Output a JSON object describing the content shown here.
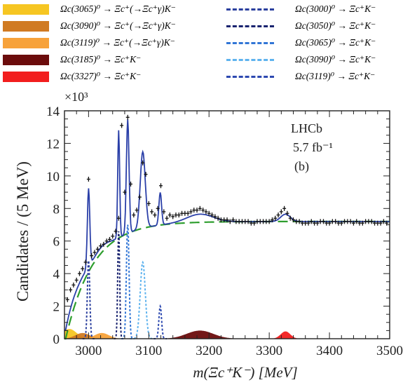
{
  "legend": {
    "left": [
      {
        "label": "Ωc(3065)⁰ → Ξc⁺(→Ξc⁺γ)K⁻",
        "color": "#f6c622"
      },
      {
        "label": "Ωc(3090)⁰ → Ξc⁺(→Ξc⁺γ)K⁻",
        "color": "#d07a22"
      },
      {
        "label": "Ωc(3119)⁰ → Ξc⁺(→Ξc⁺γ)K⁻",
        "color": "#f7a23a"
      },
      {
        "label": "Ωc(3185)⁰ → Ξc⁺K⁻",
        "color": "#6b0c0c"
      },
      {
        "label": "Ωc(3327)⁰ → Ξc⁺K⁻",
        "color": "#f21e1e"
      }
    ],
    "right": [
      {
        "label": "Ωc(3000)⁰ → Ξc⁺K⁻",
        "color": "#2a3f9e"
      },
      {
        "label": "Ωc(3050)⁰ → Ξc⁺K⁻",
        "color": "#1a2470"
      },
      {
        "label": "Ωc(3065)⁰ → Ξc⁺K⁻",
        "color": "#3276d6"
      },
      {
        "label": "Ωc(3090)⁰ → Ξc⁺K⁻",
        "color": "#5fb3ee"
      },
      {
        "label": "Ωc(3119)⁰ → Ξc⁺K⁻",
        "color": "#2d49b0"
      }
    ]
  },
  "annotations": {
    "experiment": "LHCb",
    "luminosity": "5.7 fb⁻¹",
    "panel": "(b)",
    "multiplier": "×10³"
  },
  "chart_data": {
    "type": "line",
    "xlabel": "m(Ξc⁺K⁻) [MeV]",
    "ylabel": "Candidates / (5 MeV)",
    "y_multiplier": "×10³",
    "xlim": [
      2960,
      3500
    ],
    "ylim": [
      0,
      14
    ],
    "xticks": [
      "3000",
      "3100",
      "3200",
      "3300",
      "3400",
      "3500"
    ],
    "yticks": [
      "0",
      "2",
      "4",
      "6",
      "8",
      "10",
      "12",
      "14"
    ],
    "background": {
      "name": "Background",
      "color": "#2e9e2e",
      "threshold": 2962,
      "asymptote": 7.2,
      "scale": 45
    },
    "total_fit_color": "#2a3fa8",
    "data_points": [
      [
        2965,
        2.4
      ],
      [
        2970,
        3.0
      ],
      [
        2975,
        3.3
      ],
      [
        2980,
        3.6
      ],
      [
        2985,
        4.0
      ],
      [
        2990,
        4.3
      ],
      [
        2995,
        4.7
      ],
      [
        3000,
        9.8
      ],
      [
        3005,
        5.1
      ],
      [
        3010,
        5.3
      ],
      [
        3015,
        5.5
      ],
      [
        3020,
        5.7
      ],
      [
        3025,
        5.8
      ],
      [
        3030,
        6.0
      ],
      [
        3035,
        6.1
      ],
      [
        3040,
        6.3
      ],
      [
        3045,
        6.6
      ],
      [
        3050,
        7.4
      ],
      [
        3055,
        13.1
      ],
      [
        3060,
        9.0
      ],
      [
        3065,
        13.6
      ],
      [
        3070,
        9.5
      ],
      [
        3075,
        7.6
      ],
      [
        3080,
        7.9
      ],
      [
        3085,
        8.7
      ],
      [
        3090,
        10.8
      ],
      [
        3095,
        10.1
      ],
      [
        3100,
        8.3
      ],
      [
        3105,
        7.8
      ],
      [
        3110,
        7.6
      ],
      [
        3115,
        8.0
      ],
      [
        3120,
        9.4
      ],
      [
        3125,
        7.8
      ],
      [
        3130,
        7.4
      ],
      [
        3135,
        7.6
      ],
      [
        3140,
        7.5
      ],
      [
        3145,
        7.6
      ],
      [
        3150,
        7.6
      ],
      [
        3155,
        7.7
      ],
      [
        3160,
        7.7
      ],
      [
        3165,
        7.7
      ],
      [
        3170,
        7.8
      ],
      [
        3175,
        7.9
      ],
      [
        3180,
        7.9
      ],
      [
        3185,
        8.0
      ],
      [
        3190,
        7.9
      ],
      [
        3195,
        7.8
      ],
      [
        3200,
        7.7
      ],
      [
        3205,
        7.6
      ],
      [
        3210,
        7.5
      ],
      [
        3215,
        7.4
      ],
      [
        3220,
        7.3
      ],
      [
        3225,
        7.3
      ],
      [
        3230,
        7.3
      ],
      [
        3235,
        7.2
      ],
      [
        3240,
        7.3
      ],
      [
        3245,
        7.2
      ],
      [
        3250,
        7.2
      ],
      [
        3255,
        7.2
      ],
      [
        3260,
        7.2
      ],
      [
        3265,
        7.2
      ],
      [
        3270,
        7.1
      ],
      [
        3275,
        7.1
      ],
      [
        3280,
        7.2
      ],
      [
        3285,
        7.2
      ],
      [
        3290,
        7.2
      ],
      [
        3295,
        7.2
      ],
      [
        3300,
        7.2
      ],
      [
        3305,
        7.3
      ],
      [
        3310,
        7.4
      ],
      [
        3315,
        7.6
      ],
      [
        3320,
        7.8
      ],
      [
        3325,
        8.0
      ],
      [
        3330,
        7.7
      ],
      [
        3335,
        7.4
      ],
      [
        3340,
        7.3
      ],
      [
        3345,
        7.2
      ],
      [
        3350,
        7.2
      ],
      [
        3355,
        7.1
      ],
      [
        3360,
        7.1
      ],
      [
        3365,
        7.1
      ],
      [
        3370,
        7.2
      ],
      [
        3375,
        7.1
      ],
      [
        3380,
        7.1
      ],
      [
        3385,
        7.2
      ],
      [
        3390,
        7.2
      ],
      [
        3395,
        7.1
      ],
      [
        3400,
        7.1
      ],
      [
        3405,
        7.2
      ],
      [
        3410,
        7.2
      ],
      [
        3415,
        7.1
      ],
      [
        3420,
        7.1
      ],
      [
        3425,
        7.2
      ],
      [
        3430,
        7.2
      ],
      [
        3435,
        7.2
      ],
      [
        3440,
        7.1
      ],
      [
        3445,
        7.2
      ],
      [
        3450,
        7.1
      ],
      [
        3455,
        7.1
      ],
      [
        3460,
        7.2
      ],
      [
        3465,
        7.2
      ],
      [
        3470,
        7.2
      ],
      [
        3475,
        7.1
      ],
      [
        3480,
        7.1
      ],
      [
        3485,
        7.1
      ],
      [
        3490,
        7.2
      ],
      [
        3495,
        7.1
      ]
    ],
    "series": [
      {
        "component": "Ωc(3000)⁰ → Ξc⁺K⁻",
        "style": "dashed",
        "color": "#2a3f9e",
        "mass": 3000,
        "width": 2.0,
        "height": 4.8
      },
      {
        "component": "Ωc(3050)⁰ → Ξc⁺K⁻",
        "style": "dashed",
        "color": "#1a2470",
        "mass": 3050,
        "width": 1.6,
        "height": 6.6
      },
      {
        "component": "Ωc(3065)⁰ → Ξc⁺K⁻",
        "style": "dashed",
        "color": "#3276d6",
        "mass": 3065,
        "width": 2.2,
        "height": 7.0
      },
      {
        "component": "Ωc(3090)⁰ → Ξc⁺K⁻",
        "style": "dashed",
        "color": "#5fb3ee",
        "mass": 3090,
        "width": 4.2,
        "height": 4.7
      },
      {
        "component": "Ωc(3119)⁰ → Ξc⁺K⁻",
        "style": "dashed",
        "color": "#2d49b0",
        "mass": 3119,
        "width": 2.2,
        "height": 2.0
      },
      {
        "component": "Ωc(3065)⁰ → Ξc⁺(→Ξc⁺γ)K⁻",
        "style": "filled",
        "color": "#f6c622",
        "mass": 2968,
        "width": 12,
        "height": 0.6
      },
      {
        "component": "Ωc(3090)⁰ → Ξc⁺(→Ξc⁺γ)K⁻",
        "style": "filled",
        "color": "#d07a22",
        "mass": 2990,
        "width": 12,
        "height": 0.35
      },
      {
        "component": "Ωc(3119)⁰ → Ξc⁺(→Ξc⁺γ)K⁻",
        "style": "filled",
        "color": "#f7a23a",
        "mass": 3022,
        "width": 12,
        "height": 0.35
      },
      {
        "component": "Ωc(3185)⁰ → Ξc⁺K⁻",
        "style": "filled",
        "color": "#6b0c0c",
        "mass": 3185,
        "width": 22,
        "height": 0.5
      },
      {
        "component": "Ωc(3327)⁰ → Ξc⁺K⁻",
        "style": "filled",
        "color": "#f21e1e",
        "mass": 3327,
        "width": 8,
        "height": 0.45
      }
    ]
  }
}
